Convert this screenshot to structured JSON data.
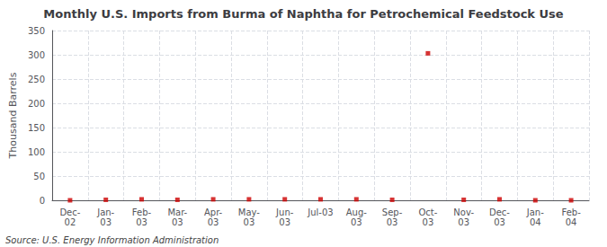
{
  "chart_data": {
    "type": "scatter",
    "title": "Monthly U.S. Imports from Burma of Naphtha for Petrochemical Feedstock Use",
    "ylabel": "Thousand Barrels",
    "source": "Source: U.S. Energy Information Administration",
    "categories": [
      "Dec-\n02",
      "Jan-\n03",
      "Feb-\n03",
      "Mar-\n03",
      "Apr-\n03",
      "May-\n03",
      "Jun-\n03",
      "Jul-03",
      "Aug-\n03",
      "Sep-\n03",
      "Oct-\n03",
      "Nov-\n03",
      "Dec-\n03",
      "Jan-\n04",
      "Feb-\n04"
    ],
    "values": [
      0,
      1,
      2,
      1,
      2,
      2,
      2,
      2,
      2,
      1,
      303,
      1,
      2,
      0,
      0
    ],
    "color": "#cc0000",
    "marker": "square",
    "ylim": [
      0,
      350
    ],
    "yticks": [
      0,
      50,
      100,
      150,
      200,
      250,
      300,
      350
    ],
    "grid": true
  }
}
